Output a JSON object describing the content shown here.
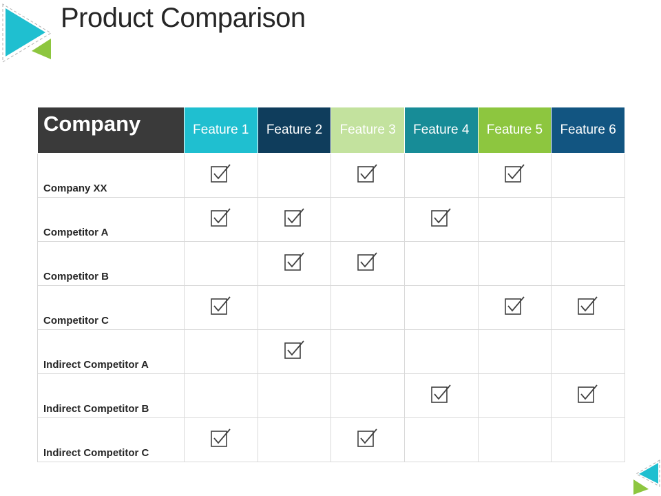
{
  "title": "Product Comparison",
  "colors": {
    "teal_triangle": "#1fbfd0",
    "green_triangle": "#8dc63f",
    "company_header_bg": "#3a3a3a"
  },
  "table": {
    "corner_label": "Company",
    "features": [
      {
        "label": "Feature 1",
        "color": "#1fbfd0"
      },
      {
        "label": "Feature 2",
        "color": "#0f3d5c"
      },
      {
        "label": "Feature 3",
        "color": "#c3e29e"
      },
      {
        "label": "Feature 4",
        "color": "#178c97"
      },
      {
        "label": "Feature 5",
        "color": "#8dc63f"
      },
      {
        "label": "Feature 6",
        "color": "#125581"
      }
    ],
    "rows": [
      {
        "name": "Company XX",
        "checks": [
          true,
          false,
          true,
          false,
          true,
          false
        ]
      },
      {
        "name": "Competitor A",
        "checks": [
          true,
          true,
          false,
          true,
          false,
          false
        ]
      },
      {
        "name": "Competitor B",
        "checks": [
          false,
          true,
          true,
          false,
          false,
          false
        ]
      },
      {
        "name": "Competitor C",
        "checks": [
          true,
          false,
          false,
          false,
          true,
          true
        ]
      },
      {
        "name": "Indirect Competitor A",
        "checks": [
          false,
          true,
          false,
          false,
          false,
          false
        ]
      },
      {
        "name": "Indirect Competitor B",
        "checks": [
          false,
          false,
          false,
          true,
          false,
          true
        ]
      },
      {
        "name": "Indirect Competitor C",
        "checks": [
          true,
          false,
          true,
          false,
          false,
          false
        ]
      }
    ],
    "check_icon": "checkbox-checked-icon"
  }
}
